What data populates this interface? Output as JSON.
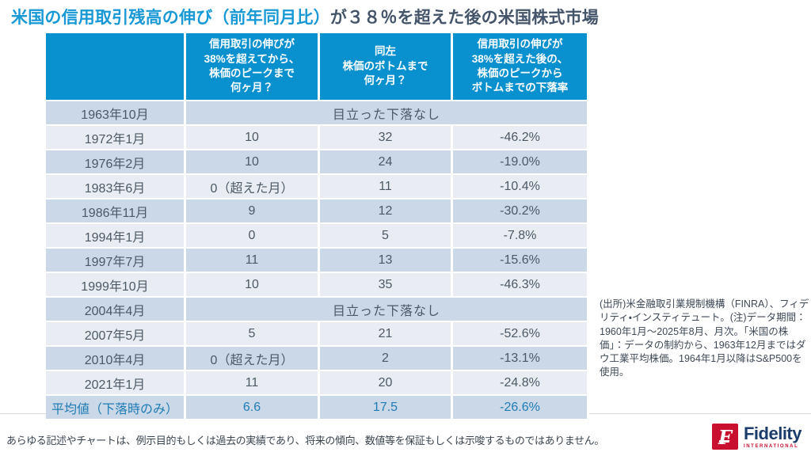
{
  "title": {
    "highlight": "米国の信用取引残高の伸び（前年同月比）",
    "rest": "が３８％を超えた後の米国株式市場"
  },
  "table": {
    "headers": [
      "",
      "信用取引の伸びが\n38%を超えてから、\n株価のピークまで\n何ヶ月？",
      "同左\n株価のボトムまで\n何ヶ月？",
      "信用取引の伸びが\n38%を超えた後の、\n株価のピークから\nボトムまでの下落率"
    ],
    "rows": [
      {
        "date": "1963年10月",
        "note": "目立った下落なし"
      },
      {
        "date": "1972年1月",
        "peak": "10",
        "bottom": "32",
        "decline": "-46.2%"
      },
      {
        "date": "1976年2月",
        "peak": "10",
        "bottom": "24",
        "decline": "-19.0%"
      },
      {
        "date": "1983年6月",
        "peak": "0（超えた月）",
        "bottom": "11",
        "decline": "-10.4%"
      },
      {
        "date": "1986年11月",
        "peak": "9",
        "bottom": "12",
        "decline": "-30.2%"
      },
      {
        "date": "1994年1月",
        "peak": "0",
        "bottom": "5",
        "decline": "-7.8%"
      },
      {
        "date": "1997年7月",
        "peak": "11",
        "bottom": "13",
        "decline": "-15.6%"
      },
      {
        "date": "1999年10月",
        "peak": "10",
        "bottom": "35",
        "decline": "-46.3%"
      },
      {
        "date": "2004年4月",
        "note": "目立った下落なし"
      },
      {
        "date": "2007年5月",
        "peak": "5",
        "bottom": "21",
        "decline": "-52.6%"
      },
      {
        "date": "2010年4月",
        "peak": "0（超えた月）",
        "bottom": "2",
        "decline": "-13.1%"
      },
      {
        "date": "2021年1月",
        "peak": "11",
        "bottom": "20",
        "decline": "-24.8%"
      },
      {
        "date": "平均値（下落時のみ）",
        "peak": "6.6",
        "bottom": "17.5",
        "decline": "-26.6%"
      }
    ]
  },
  "source_note": "(出所)米金融取引業規制機構（FINRA）、フィデリティ・インスティテュート。(注)データ期間：1960年1月～2025年8月、月次。「米国の株価」：データの制約から、1963年12月まではダウ工業平均株価。1964年1月以降はS&P500を使用。",
  "footer": {
    "disclaimer": "あらゆる記述やチャートは、例示目的もしくは過去の実績であり、将来の傾向、数値等を保証もしくは示唆するものではありません。",
    "brand": "Fidelity",
    "brand_sub": "INTERNATIONAL",
    "logo_letter": "F"
  },
  "colors": {
    "header_blue": "#0990ce",
    "title_blue": "#1899d6",
    "title_dark": "#44546a",
    "row_dark": "#cbd8e8",
    "row_light": "#e9edf3",
    "cell_text": "#4c5866",
    "average_text": "#1f7cb5",
    "fidelity_red": "#c8102e",
    "fidelity_navy": "#1c3d6b"
  }
}
